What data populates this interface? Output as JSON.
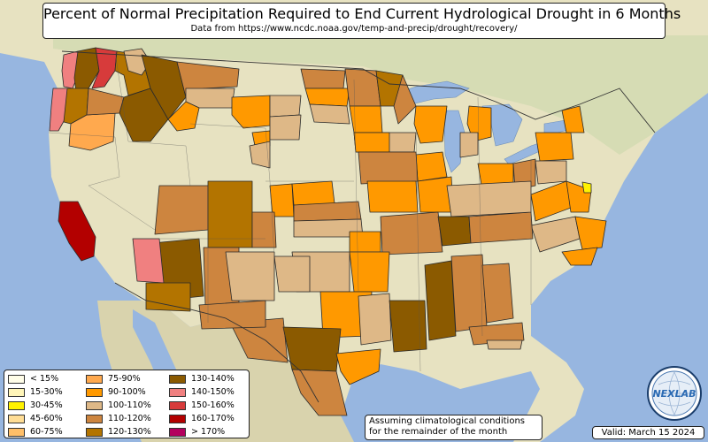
{
  "header": {
    "title": "Percent of Normal Precipitation Required to End Current Hydrological Drought in 6 Months",
    "subtitle": "Data from https://www.ncdc.noaa.gov/temp-and-precip/drought/recovery/"
  },
  "legend": {
    "items": [
      {
        "label": "< 15%",
        "color": "#fffde8"
      },
      {
        "label": "15-30%",
        "color": "#fff5b8"
      },
      {
        "label": "30-45%",
        "color": "#fff200"
      },
      {
        "label": "45-60%",
        "color": "#ffdd95"
      },
      {
        "label": "60-75%",
        "color": "#ffbf69"
      },
      {
        "label": "75-90%",
        "color": "#ffa94e"
      },
      {
        "label": "90-100%",
        "color": "#ff9900"
      },
      {
        "label": "100-110%",
        "color": "#deb887"
      },
      {
        "label": "110-120%",
        "color": "#cd853f"
      },
      {
        "label": "120-130%",
        "color": "#b37400"
      },
      {
        "label": "130-140%",
        "color": "#8b5a00"
      },
      {
        "label": "140-150%",
        "color": "#f08080"
      },
      {
        "label": "150-160%",
        "color": "#d73b3b"
      },
      {
        "label": "160-170%",
        "color": "#b30000"
      },
      {
        "label": "> 170%",
        "color": "#b3005e"
      }
    ]
  },
  "footer": {
    "assumption_line1": "Assuming climatological conditions",
    "assumption_line2": "for the remainder of the month",
    "valid": "Valid: March 15 2024"
  },
  "logo": {
    "text": "NEXLAB"
  }
}
